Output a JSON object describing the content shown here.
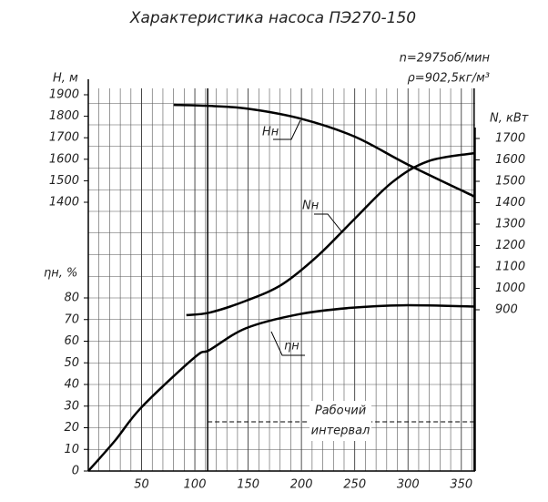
{
  "chart_data": {
    "type": "line",
    "title": "Характеристика насоса ПЭ270-150",
    "annotations": [
      "n=2975об/мин",
      "ρ=902,5кг/м³"
    ],
    "ylabel": "H, м",
    "y2label": "N, кВт",
    "y3label": "ηн, %",
    "xlim": [
      0,
      363
    ],
    "xticks": [
      50,
      100,
      150,
      200,
      250,
      300,
      350
    ],
    "ylim": [
      1400,
      1900
    ],
    "yticks": [
      1400,
      1500,
      1600,
      1700,
      1800,
      1900
    ],
    "y2lim": [
      900,
      1700
    ],
    "y2ticks": [
      900,
      1000,
      1100,
      1200,
      1300,
      1400,
      1500,
      1600,
      1700
    ],
    "y3lim": [
      0,
      80
    ],
    "y3ticks": [
      0,
      10,
      20,
      30,
      40,
      50,
      60,
      70,
      80
    ],
    "grid": true,
    "series": [
      {
        "name": "Hн",
        "axis": "y",
        "color": "#000000",
        "x": [
          80,
          110,
          150,
          200,
          250,
          300,
          363
        ],
        "values": [
          1853,
          1849,
          1835,
          1788,
          1705,
          1575,
          1425
        ]
      },
      {
        "name": "Nн",
        "axis": "y2",
        "color": "#000000",
        "x": [
          92,
          114,
          148,
          182,
          216,
          250,
          285,
          319,
          363
        ],
        "values": [
          875,
          887,
          942,
          1019,
          1155,
          1325,
          1495,
          1594,
          1632
        ]
      },
      {
        "name": "ηн",
        "axis": "y3",
        "color": "#000000",
        "x": [
          0,
          25,
          50,
          100,
          114,
          148,
          197,
          246,
          296,
          363
        ],
        "values": [
          0,
          14,
          29.5,
          52.6,
          56,
          66,
          72.4,
          75.4,
          76.6,
          76
        ]
      }
    ],
    "interval": {
      "label": [
        "Рабочий",
        "интервал"
      ],
      "x": [
        112,
        362
      ]
    }
  }
}
